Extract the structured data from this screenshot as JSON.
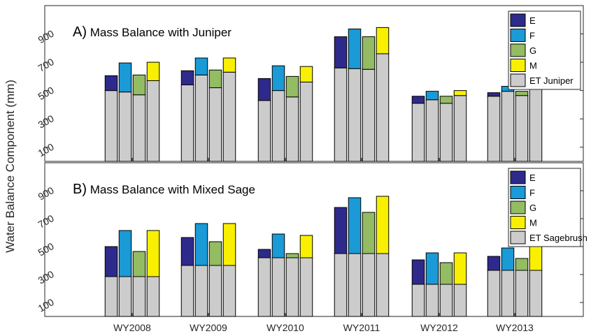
{
  "ylabel": "Water Balance Component (mm)",
  "colors": {
    "E": "#2e2a8c",
    "F": "#1a9ad6",
    "G": "#93bc63",
    "M": "#f8f000",
    "ET": "#cccccc"
  },
  "chart_data": [
    {
      "type": "bar",
      "title": "A) Mass Balance with Juniper",
      "categories": [
        "WY2008",
        "WY2009",
        "WY2010",
        "WY2011",
        "WY2012",
        "WY2013"
      ],
      "ylim": [
        0,
        1100
      ],
      "yticks": [
        100,
        300,
        500,
        700,
        900
      ],
      "legend": [
        "E",
        "F",
        "G",
        "M",
        "ET Juniper"
      ],
      "legend_position": "top-right",
      "et": {
        "E": [
          500,
          540,
          430,
          660,
          410,
          460
        ],
        "F": [
          490,
          610,
          500,
          655,
          435,
          495
        ],
        "G": [
          470,
          520,
          455,
          650,
          410,
          465
        ],
        "M": [
          570,
          630,
          560,
          760,
          465,
          550
        ]
      },
      "component": {
        "E": [
          105,
          100,
          155,
          220,
          50,
          25
        ],
        "F": [
          205,
          120,
          175,
          280,
          60,
          35
        ],
        "G": [
          140,
          125,
          145,
          230,
          50,
          30
        ],
        "M": [
          130,
          100,
          110,
          185,
          35,
          0
        ]
      }
    },
    {
      "type": "bar",
      "title": "B) Mass Balance with Mixed Sage",
      "categories": [
        "WY2008",
        "WY2009",
        "WY2010",
        "WY2011",
        "WY2012",
        "WY2013"
      ],
      "ylim": [
        0,
        1100
      ],
      "yticks": [
        100,
        300,
        500,
        700,
        900
      ],
      "legend": [
        "E",
        "F",
        "G",
        "M",
        "ET Sagebrush"
      ],
      "legend_position": "top-right",
      "et": {
        "E": [
          285,
          365,
          420,
          450,
          230,
          330
        ],
        "F": [
          285,
          365,
          420,
          450,
          230,
          330
        ],
        "G": [
          285,
          365,
          420,
          450,
          230,
          330
        ],
        "M": [
          285,
          365,
          420,
          450,
          230,
          330
        ]
      },
      "component": {
        "E": [
          215,
          200,
          60,
          330,
          175,
          100
        ],
        "F": [
          330,
          300,
          170,
          400,
          225,
          160
        ],
        "G": [
          180,
          170,
          30,
          295,
          155,
          85
        ],
        "M": [
          330,
          300,
          160,
          410,
          225,
          175
        ]
      }
    }
  ]
}
